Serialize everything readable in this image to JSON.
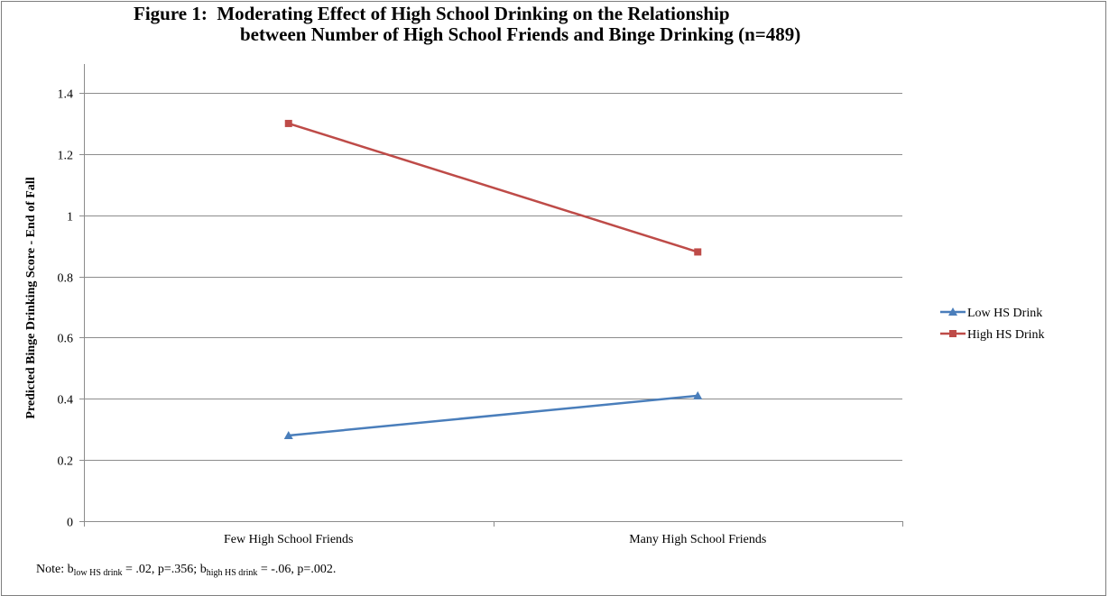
{
  "figure": {
    "title_line1": "Figure 1:  Moderating Effect of High School Drinking on the Relationship",
    "title_line2": "between Number of High School Friends and Binge Drinking (n=489)"
  },
  "note": {
    "prefix": "Note:  b",
    "sub1": "low HS drink",
    "mid": " = .02, p=.356; b",
    "sub2": "high HS drink",
    "suffix": " = -.06, p=.002."
  },
  "chart_data": {
    "type": "line",
    "title": "Figure 1:  Moderating Effect of High School Drinking on the Relationship between Number of High School Friends and Binge Drinking (n=489)",
    "xlabel": "",
    "ylabel": "Predicted Binge Drinking Score - End of Fall",
    "categories": [
      "Few High School Friends",
      "Many High School Friends"
    ],
    "ylim": [
      0,
      1.4
    ],
    "yticks": [
      0,
      0.2,
      0.4,
      0.6,
      0.8,
      1,
      1.2,
      1.4
    ],
    "ytick_labels": [
      "0",
      "0.2",
      "0.4",
      "0.6",
      "0.8",
      "1",
      "1.2",
      "1.4"
    ],
    "grid": true,
    "legend_position": "right",
    "series": [
      {
        "name": "Low HS Drink",
        "values": [
          0.28,
          0.41
        ],
        "color": "#4a7ebb",
        "marker": "triangle"
      },
      {
        "name": "High HS Drink",
        "values": [
          1.3,
          0.88
        ],
        "color": "#be4b48",
        "marker": "square"
      }
    ]
  }
}
